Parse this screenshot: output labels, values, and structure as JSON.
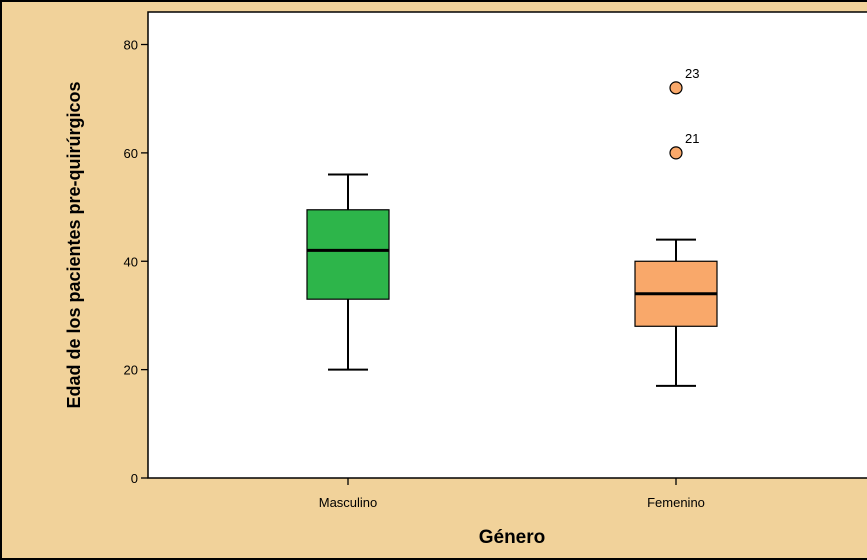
{
  "chart_data": {
    "type": "boxplot",
    "title": "",
    "xlabel": "Género",
    "ylabel": "Edad de los pacientes pre-quirúrgicos",
    "ylim": [
      0,
      86
    ],
    "yticks": [
      0,
      20,
      40,
      60,
      80
    ],
    "grid": false,
    "categories": [
      "Masculino",
      "Femenino"
    ],
    "boxes": [
      {
        "category": "Masculino",
        "color": "#2db54a",
        "whisker_low": 20,
        "q1": 33,
        "median": 42,
        "q3": 49.5,
        "whisker_high": 56,
        "outliers": []
      },
      {
        "category": "Femenino",
        "color": "#f9a86a",
        "whisker_low": 17,
        "q1": 28,
        "median": 34,
        "q3": 40,
        "whisker_high": 44,
        "outliers": [
          {
            "value": 72,
            "label": "23"
          },
          {
            "value": 60,
            "label": "21"
          }
        ]
      }
    ],
    "frame_color": "#f1d29a",
    "plot_background": "#ffffff"
  }
}
